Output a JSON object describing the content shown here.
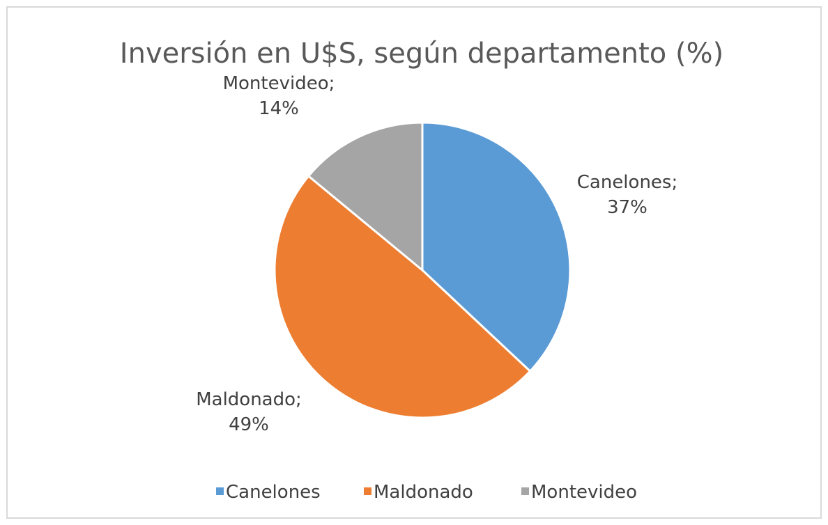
{
  "chart_data": {
    "type": "pie",
    "title": "Inversión en U$S, según departamento (%)",
    "categories": [
      "Canelones",
      "Maldonado",
      "Montevideo"
    ],
    "values": [
      37,
      49,
      14
    ],
    "value_labels": [
      "Canelones; 37%",
      "Maldonado; 49%",
      "Montevideo; 14%"
    ],
    "colors": [
      "#5b9bd5",
      "#ed7d31",
      "#a5a5a5"
    ],
    "legend": "bottom"
  }
}
